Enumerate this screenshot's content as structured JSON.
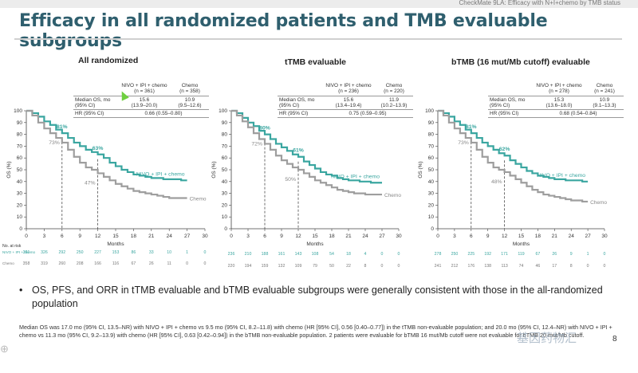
{
  "header": {
    "source": "CheckMate 9LA: Efficacy with N+I+chemo by TMB status",
    "title": "Efficacy in all randomized patients and TMB evaluable subgroups"
  },
  "table_row_labels": {
    "median_os": "Median OS, mo",
    "ci": "(95% CI)",
    "hr": "HR (95% CI)"
  },
  "panels": [
    {
      "title": "All randomized",
      "arm1_header": "NIVO + IPI + chemo",
      "arm1_n": "(n = 361)",
      "arm2_header": "Chemo",
      "arm2_n": "(n = 358)",
      "arm1_median": "15.6",
      "arm1_ci": "(13.9–20.0)",
      "arm2_median": "10.9",
      "arm2_ci": "(9.5–12.6)",
      "hr": "0.66 (0.55–0.80)"
    },
    {
      "title": "tTMB evaluable",
      "arm1_header": "NIVO + IPI + chemo",
      "arm1_n": "(n = 236)",
      "arm2_header": "Chemo",
      "arm2_n": "(n = 220)",
      "arm1_median": "15.6",
      "arm1_ci": "(13.4–19.4)",
      "arm2_median": "11.9",
      "arm2_ci": "(10.2–13.9)",
      "hr": "0.75 (0.59–0.95)"
    },
    {
      "title": "bTMB (16 mut/Mb cutoff) evaluable",
      "arm1_header": "NIVO + IPI + chemo",
      "arm1_n": "(n = 278)",
      "arm2_header": "Chemo",
      "arm2_n": "(n = 241)",
      "arm1_median": "15.3",
      "arm1_ci": "(13.6–18.0)",
      "arm2_median": "10.9",
      "arm2_ci": "(9.1–13.3)",
      "hr": "0.68 (0.54–0.84)"
    }
  ],
  "risk_labels": {
    "title": "No. at risk",
    "arm1": "NIVO + IPI + chemo",
    "arm2": "Chemo"
  },
  "chart_data": [
    {
      "type": "line",
      "title": "All randomized",
      "xlabel": "Months",
      "ylabel": "OS (%)",
      "xlim": [
        0,
        30
      ],
      "ylim": [
        0,
        100
      ],
      "xticks": [
        0,
        3,
        6,
        9,
        12,
        15,
        18,
        21,
        24,
        27,
        30
      ],
      "yticks": [
        0,
        10,
        20,
        30,
        40,
        50,
        60,
        70,
        80,
        90,
        100
      ],
      "series": [
        {
          "name": "NIVO + IPI + chemo",
          "color": "#3aa6a0",
          "x": [
            0,
            1,
            2,
            3,
            4,
            5,
            6,
            7,
            8,
            9,
            10,
            11,
            12,
            13,
            14,
            15,
            16,
            17,
            18,
            19,
            20,
            21,
            22,
            23,
            24,
            25,
            26,
            27
          ],
          "y": [
            100,
            98,
            95,
            91,
            88,
            84,
            81,
            77,
            73,
            70,
            67,
            65,
            63,
            60,
            56,
            53,
            50,
            48,
            46,
            45,
            44,
            43,
            43,
            42,
            42,
            42,
            41,
            41
          ]
        },
        {
          "name": "Chemo",
          "color": "#9e9e9e",
          "x": [
            0,
            1,
            2,
            3,
            4,
            5,
            6,
            7,
            8,
            9,
            10,
            11,
            12,
            13,
            14,
            15,
            16,
            17,
            18,
            19,
            20,
            21,
            22,
            23,
            24,
            25,
            26,
            27
          ],
          "y": [
            100,
            96,
            90,
            85,
            81,
            77,
            73,
            67,
            61,
            56,
            52,
            50,
            47,
            44,
            41,
            38,
            36,
            34,
            32,
            31,
            30,
            29,
            28,
            27,
            26,
            26,
            26,
            26
          ]
        }
      ],
      "annotations": [
        {
          "x": 6,
          "y": 81,
          "text": "81%",
          "series": "NIVO + IPI + chemo"
        },
        {
          "x": 6,
          "y": 73,
          "text": "73%",
          "series": "Chemo"
        },
        {
          "x": 12,
          "y": 63,
          "text": "63%",
          "series": "NIVO + IPI + chemo"
        },
        {
          "x": 12,
          "y": 47,
          "text": "47%",
          "series": "Chemo"
        }
      ],
      "at_risk": {
        "NIVO + IPI + chemo": [
          "361",
          "326",
          "292",
          "250",
          "227",
          "153",
          "86",
          "33",
          "10",
          "1",
          "0"
        ],
        "Chemo": [
          "358",
          "319",
          "260",
          "208",
          "166",
          "116",
          "67",
          "26",
          "11",
          "0",
          "0"
        ]
      }
    },
    {
      "type": "line",
      "title": "tTMB evaluable",
      "xlabel": "Months",
      "ylabel": "OS (%)",
      "xlim": [
        0,
        30
      ],
      "ylim": [
        0,
        100
      ],
      "xticks": [
        0,
        3,
        6,
        9,
        12,
        15,
        18,
        21,
        24,
        27,
        30
      ],
      "yticks": [
        0,
        10,
        20,
        30,
        40,
        50,
        60,
        70,
        80,
        90,
        100
      ],
      "series": [
        {
          "name": "NIVO + IPI + chemo",
          "color": "#3aa6a0",
          "x": [
            0,
            1,
            2,
            3,
            4,
            5,
            6,
            7,
            8,
            9,
            10,
            11,
            12,
            13,
            14,
            15,
            16,
            17,
            18,
            19,
            20,
            21,
            22,
            23,
            24,
            25,
            26,
            27
          ],
          "y": [
            100,
            98,
            94,
            90,
            87,
            83,
            80,
            76,
            72,
            69,
            66,
            63,
            61,
            57,
            54,
            51,
            48,
            46,
            45,
            43,
            42,
            41,
            41,
            40,
            40,
            39,
            39,
            39
          ]
        },
        {
          "name": "Chemo",
          "color": "#9e9e9e",
          "x": [
            0,
            1,
            2,
            3,
            4,
            5,
            6,
            7,
            8,
            9,
            10,
            11,
            12,
            13,
            14,
            15,
            16,
            17,
            18,
            19,
            20,
            21,
            22,
            23,
            24,
            25,
            26,
            27
          ],
          "y": [
            100,
            96,
            91,
            86,
            81,
            76,
            72,
            67,
            62,
            58,
            55,
            52,
            50,
            47,
            44,
            41,
            39,
            37,
            35,
            33,
            32,
            31,
            30,
            30,
            29,
            29,
            29,
            29
          ]
        }
      ],
      "annotations": [
        {
          "x": 6,
          "y": 80,
          "text": "80%",
          "series": "NIVO + IPI + chemo"
        },
        {
          "x": 6,
          "y": 72,
          "text": "72%",
          "series": "Chemo"
        },
        {
          "x": 12,
          "y": 61,
          "text": "61%",
          "series": "NIVO + IPI + chemo"
        },
        {
          "x": 12,
          "y": 50,
          "text": "50%",
          "series": "Chemo"
        }
      ],
      "at_risk": {
        "NIVO + IPI + chemo": [
          "236",
          "210",
          "188",
          "161",
          "143",
          "108",
          "54",
          "18",
          "4",
          "0",
          "0"
        ],
        "Chemo": [
          "220",
          "194",
          "159",
          "132",
          "109",
          "79",
          "50",
          "22",
          "8",
          "0",
          "0"
        ]
      }
    },
    {
      "type": "line",
      "title": "bTMB (16 mut/Mb cutoff) evaluable",
      "xlabel": "Months",
      "ylabel": "OS (%)",
      "xlim": [
        0,
        30
      ],
      "ylim": [
        0,
        100
      ],
      "xticks": [
        0,
        3,
        6,
        9,
        12,
        15,
        18,
        21,
        24,
        27,
        30
      ],
      "yticks": [
        0,
        10,
        20,
        30,
        40,
        50,
        60,
        70,
        80,
        90,
        100
      ],
      "series": [
        {
          "name": "NIVO + IPI + chemo",
          "color": "#3aa6a0",
          "x": [
            0,
            1,
            2,
            3,
            4,
            5,
            6,
            7,
            8,
            9,
            10,
            11,
            12,
            13,
            14,
            15,
            16,
            17,
            18,
            19,
            20,
            21,
            22,
            23,
            24,
            25,
            26,
            27
          ],
          "y": [
            100,
            98,
            95,
            91,
            88,
            84,
            81,
            77,
            73,
            70,
            67,
            64,
            62,
            58,
            55,
            52,
            49,
            47,
            45,
            44,
            43,
            42,
            42,
            41,
            41,
            41,
            40,
            40
          ]
        },
        {
          "name": "Chemo",
          "color": "#9e9e9e",
          "x": [
            0,
            1,
            2,
            3,
            4,
            5,
            6,
            7,
            8,
            9,
            10,
            11,
            12,
            13,
            14,
            15,
            16,
            17,
            18,
            19,
            20,
            21,
            22,
            23,
            24,
            25,
            26,
            27
          ],
          "y": [
            100,
            96,
            90,
            85,
            81,
            77,
            73,
            67,
            61,
            56,
            52,
            50,
            48,
            45,
            42,
            39,
            36,
            33,
            31,
            29,
            28,
            27,
            26,
            25,
            24,
            24,
            23,
            23
          ]
        }
      ],
      "annotations": [
        {
          "x": 6,
          "y": 81,
          "text": "81%",
          "series": "NIVO + IPI + chemo"
        },
        {
          "x": 6,
          "y": 73,
          "text": "73%",
          "series": "Chemo"
        },
        {
          "x": 12,
          "y": 62,
          "text": "62%",
          "series": "NIVO + IPI + chemo"
        },
        {
          "x": 12,
          "y": 48,
          "text": "48%",
          "series": "Chemo"
        }
      ],
      "at_risk": {
        "NIVO + IPI + chemo": [
          "278",
          "250",
          "225",
          "192",
          "171",
          "119",
          "67",
          "26",
          "9",
          "1",
          "0"
        ],
        "Chemo": [
          "241",
          "212",
          "176",
          "138",
          "113",
          "74",
          "46",
          "17",
          "8",
          "0",
          "0"
        ]
      }
    }
  ],
  "bullet": "OS, PFS, and ORR in tTMB evaluable and bTMB evaluable subgroups were generally consistent with those in the all-randomized population",
  "footnote": "Median OS was 17.0 mo (95% CI, 13.5–NR) with NIVO + IPI + chemo vs 9.5 mo (95% CI, 8.2–11.8) with chemo (HR [95% CI], 0.56 [0.40–0.77]) in the tTMB non-evaluable population; and 20.0 mo (95% CI, 12.4–NR) with NIVO + IPI + chemo vs 11.3 mo (95% CI, 9.2–13.9) with chemo (HR [95% CI], 0.63 [0.42–0.94]) in the bTMB non-evaluable population. 2 patients were evaluable for bTMB 16 mut/Mb cutoff were not evaluable for bTMB 20 mut/Mb cutoff.",
  "page_number": "8",
  "watermark": "基因药物汇"
}
